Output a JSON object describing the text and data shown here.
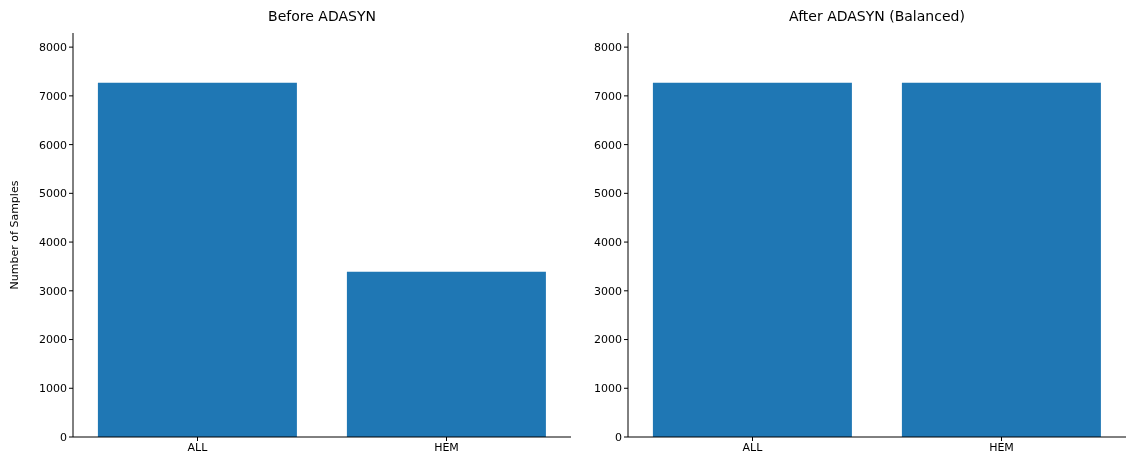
{
  "chart_data": [
    {
      "type": "bar",
      "title": "Before ADASYN",
      "ylabel": "Number of Samples",
      "categories": [
        "ALL",
        "HEM"
      ],
      "values": [
        7270,
        3390
      ],
      "color": "#1f77b4",
      "ylim": [
        0,
        8290
      ],
      "yticks": [
        0,
        1000,
        2000,
        3000,
        4000,
        5000,
        6000,
        7000,
        8000
      ],
      "grid": false
    },
    {
      "type": "bar",
      "title": "After ADASYN (Balanced)",
      "categories": [
        "ALL",
        "HEM"
      ],
      "values": [
        7270,
        7270
      ],
      "color": "#1f77b4",
      "ylim": [
        0,
        8290
      ],
      "yticks": [
        0,
        1000,
        2000,
        3000,
        4000,
        5000,
        6000,
        7000,
        8000
      ],
      "grid": false
    }
  ]
}
